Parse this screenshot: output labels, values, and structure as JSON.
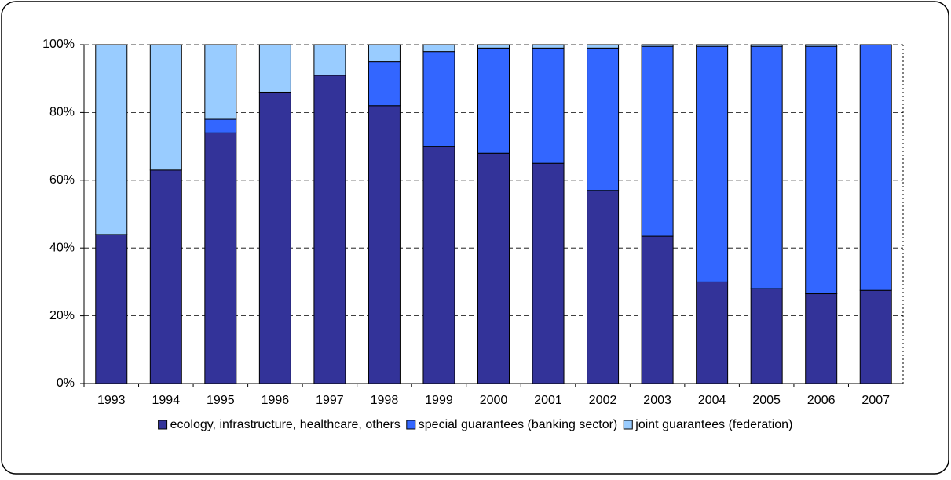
{
  "chart_data": {
    "type": "stacked_bar",
    "categories": [
      "1993",
      "1994",
      "1995",
      "1996",
      "1997",
      "1998",
      "1999",
      "2000",
      "2001",
      "2002",
      "2003",
      "2004",
      "2005",
      "2006",
      "2007"
    ],
    "series": [
      {
        "name": "ecology, infrastructure, healthcare, others",
        "color": "#333399",
        "values": [
          44,
          63,
          74,
          86,
          91,
          82,
          70,
          68,
          65,
          57,
          43.5,
          30,
          28,
          26.5,
          27.5
        ]
      },
      {
        "name": "special guarantees (banking sector)",
        "color": "#3366ff",
        "values": [
          0,
          0,
          4,
          0,
          0,
          13,
          28,
          31,
          34,
          42,
          56,
          69.5,
          71.5,
          73,
          72.5
        ]
      },
      {
        "name": "joint guarantees (federation)",
        "color": "#99ccff",
        "values": [
          56,
          37,
          22,
          14,
          9,
          5,
          2,
          1,
          1,
          1,
          0.5,
          0.5,
          0.5,
          0.5,
          0
        ]
      }
    ],
    "ylim": [
      0,
      100
    ],
    "yticks": [
      {
        "value": 0,
        "label": "0%"
      },
      {
        "value": 20,
        "label": "20%"
      },
      {
        "value": 40,
        "label": "40%"
      },
      {
        "value": 60,
        "label": "60%"
      },
      {
        "value": 80,
        "label": "80%"
      },
      {
        "value": 100,
        "label": "100%"
      }
    ],
    "grid": true
  }
}
